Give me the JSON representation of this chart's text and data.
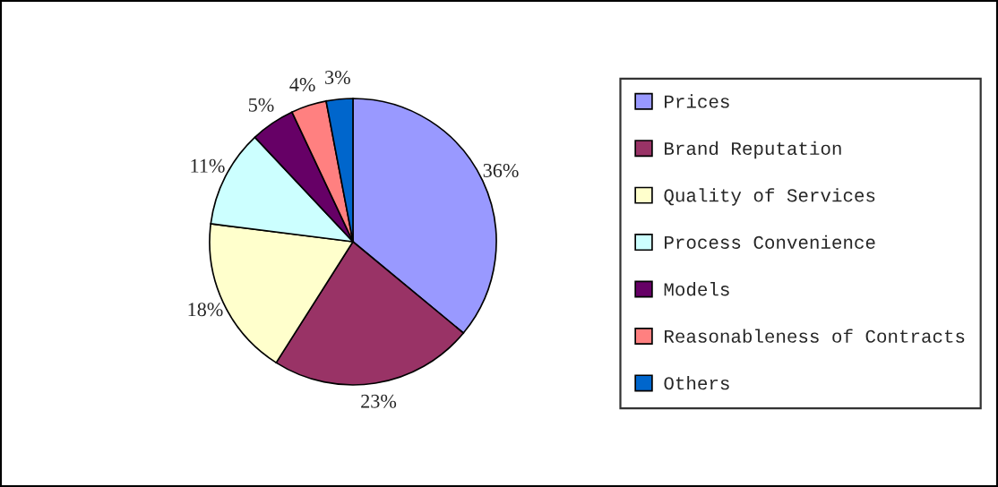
{
  "chart_data": {
    "type": "pie",
    "categories": [
      "Prices",
      "Brand Reputation",
      "Quality of Services",
      "Process Convenience",
      "Models",
      "Reasonableness of Contracts",
      "Others"
    ],
    "values": [
      36,
      23,
      18,
      11,
      5,
      4,
      3
    ],
    "colors": [
      "#9999ff",
      "#993366",
      "#ffffcc",
      "#ccffff",
      "#660066",
      "#ff8080",
      "#0066cc"
    ],
    "value_labels": [
      "36%",
      "23%",
      "18%",
      "11%",
      "5%",
      "4%",
      "3%"
    ],
    "legend": "right"
  }
}
